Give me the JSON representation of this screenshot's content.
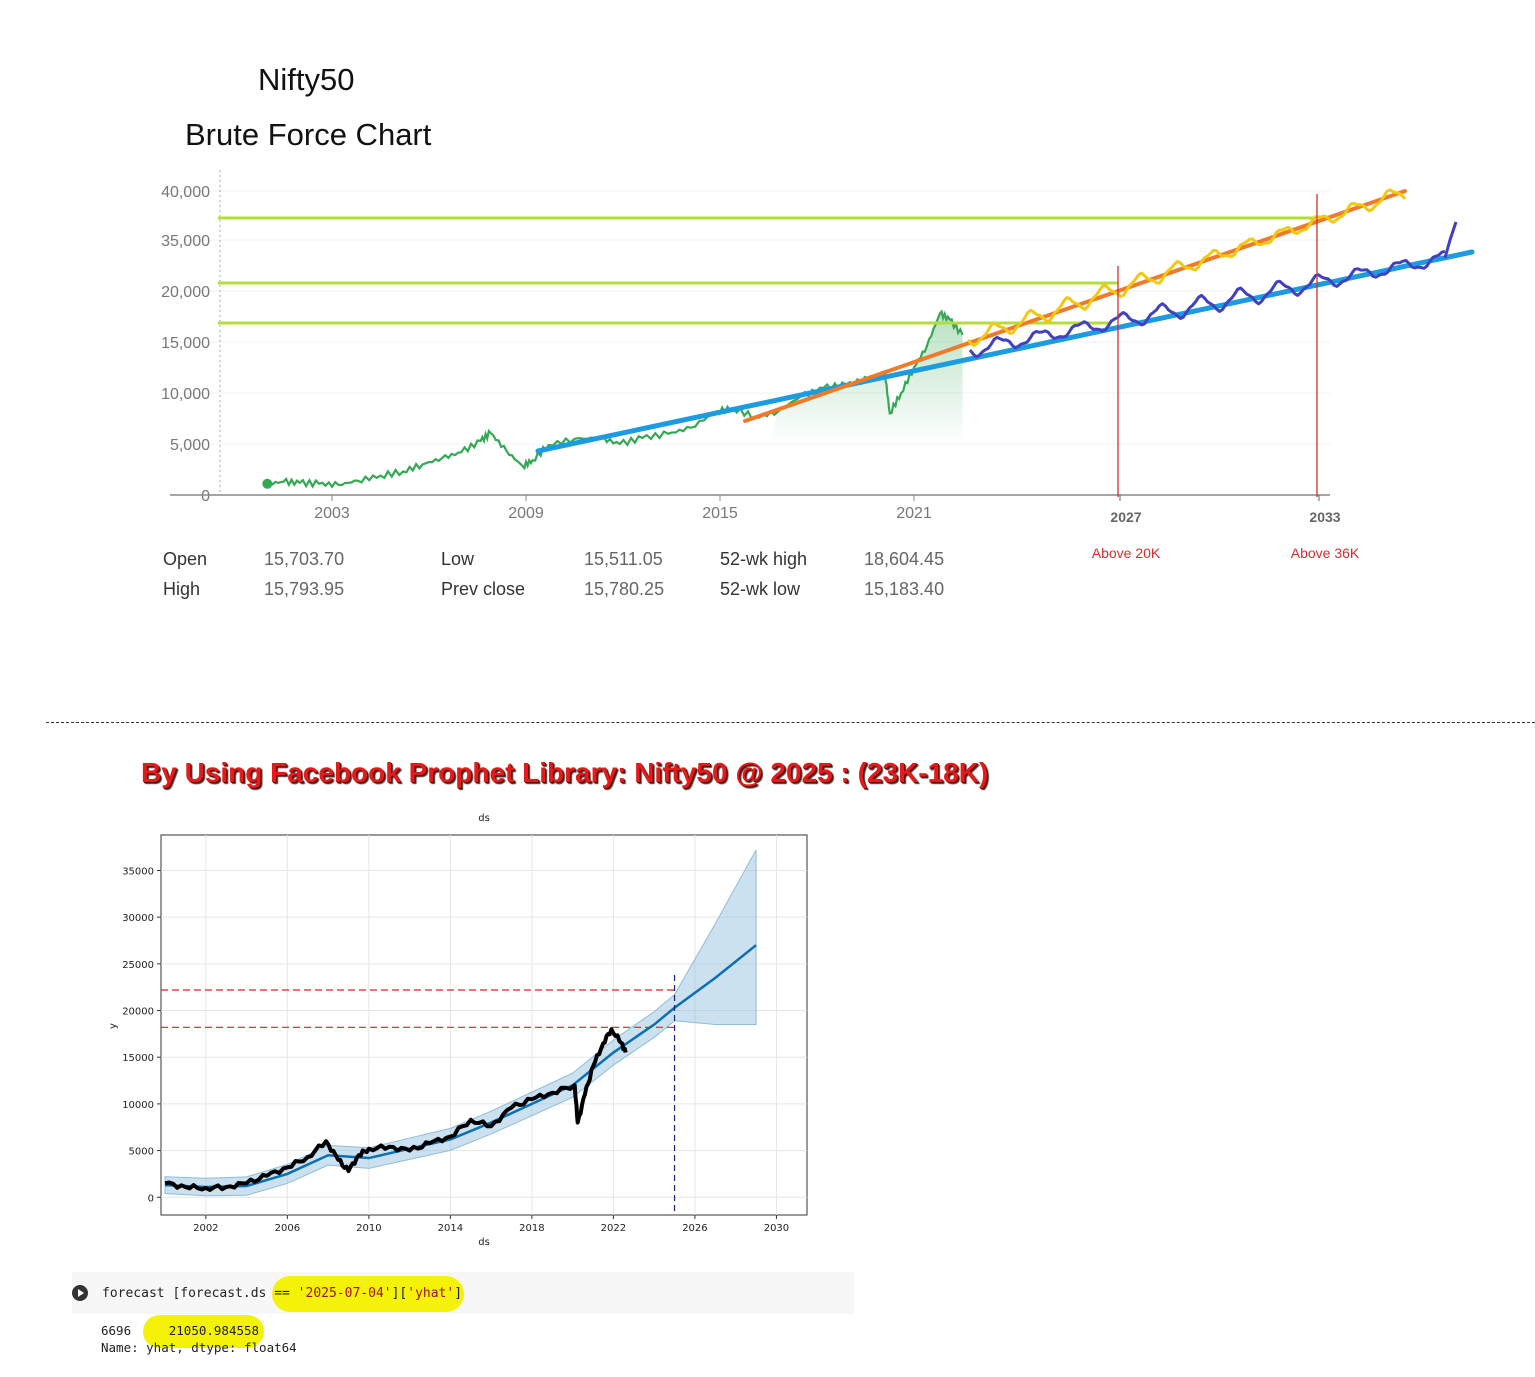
{
  "chart_data": [
    {
      "type": "line",
      "title": "Nifty50",
      "subtitle": "Brute Force Chart",
      "y_ticks": [
        "40,000",
        "35,000",
        "20,000",
        "15,000",
        "10,000",
        "5,000",
        "0"
      ],
      "x_ticks": [
        "2003",
        "2009",
        "2015",
        "2021"
      ],
      "annotation_ticks": [
        "2027",
        "2033"
      ],
      "annotations": [
        "Above 20K",
        "Above 36K"
      ],
      "colors": {
        "price": "#34a853",
        "trend_blue": "#1b9ce0",
        "trend_orange": "#f07a2a",
        "forecast_yellow": "#f2c811",
        "forecast_purple": "#4040c0",
        "levels": "#b5dd3a",
        "markers": "#d32f2f"
      },
      "series": [
        {
          "x": [
            2001.0,
            2001.5,
            2002.0,
            2002.6,
            2003.2,
            2003.8,
            2004.5,
            2005.2,
            2005.8,
            2006.4,
            2007.0,
            2007.6,
            2007.9,
            2008.4,
            2008.9,
            2009.2,
            2009.7,
            2010.5,
            2011.3,
            2011.9,
            2012.6,
            2013.4,
            2014.1,
            2014.9,
            2015.4,
            2016.1,
            2016.8,
            2017.5,
            2018.2,
            2018.9,
            2019.6,
            2020.1,
            2020.25,
            2020.6,
            2021.0,
            2021.4,
            2021.8,
            2022.1,
            2022.5
          ],
          "values": [
            1100,
            1300,
            1200,
            1100,
            1000,
            1400,
            1900,
            2300,
            3000,
            3600,
            4200,
            5300,
            6100,
            4300,
            2800,
            3400,
            4900,
            5500,
            5600,
            5000,
            5600,
            6000,
            6600,
            8200,
            8500,
            7600,
            8200,
            9700,
            10500,
            10800,
            11400,
            12000,
            8000,
            10000,
            12500,
            14600,
            17800,
            17200,
            15700
          ]
        }
      ],
      "stats": {
        "open_label": "Open",
        "open": "15,703.70",
        "high_label": "High",
        "high": "15,793.95",
        "low_label": "Low",
        "low": "15,511.05",
        "prev_close_label": "Prev close",
        "prev_close": "15,780.25",
        "wk52_high_label": "52-wk high",
        "wk52_high": "18,604.45",
        "wk52_low_label": "52-wk low",
        "wk52_low": "15,183.40"
      }
    },
    {
      "type": "line",
      "title": "ds",
      "xlabel": "ds",
      "ylabel": "y",
      "x_ticks": [
        "2002",
        "2006",
        "2010",
        "2014",
        "2018",
        "2022",
        "2026",
        "2030"
      ],
      "y_ticks": [
        "35000",
        "30000",
        "25000",
        "20000",
        "15000",
        "10000",
        "5000",
        "0"
      ],
      "xlim": [
        1999.8,
        2031.5
      ],
      "ylim": [
        -1900,
        38800
      ],
      "reference_levels": [
        22200,
        18200
      ],
      "forecast_split": 2025.0,
      "series": [
        {
          "x": [
            2000.0,
            2002.0,
            2004.0,
            2006.0,
            2008.0,
            2010.0,
            2012.0,
            2014.0,
            2016.0,
            2018.0,
            2020.0,
            2022.0,
            2024.0,
            2025.0,
            2027.0,
            2029.0
          ],
          "values": [
            1300,
            1100,
            1200,
            2500,
            4500,
            4200,
            5200,
            6200,
            8000,
            10000,
            12000,
            15500,
            18500,
            20300,
            23500,
            27000
          ]
        },
        {
          "x": [
            2000.0,
            2001.0,
            2002.0,
            2003.0,
            2004.0,
            2005.0,
            2006.0,
            2007.0,
            2007.9,
            2008.5,
            2009.0,
            2009.5,
            2010.0,
            2011.0,
            2012.0,
            2013.0,
            2014.0,
            2015.0,
            2016.0,
            2017.0,
            2018.0,
            2019.0,
            2020.1,
            2020.25,
            2020.6,
            2021.0,
            2021.5,
            2021.9,
            2022.4,
            2022.6
          ],
          "values": [
            1500,
            1100,
            1000,
            1100,
            1500,
            2300,
            3200,
            4300,
            6000,
            4000,
            2800,
            4500,
            5200,
            5400,
            5000,
            5800,
            6500,
            8300,
            7600,
            9600,
            10500,
            11200,
            12000,
            8000,
            11000,
            14000,
            16500,
            18000,
            16500,
            15500
          ]
        }
      ]
    }
  ],
  "headline": "By Using Facebook Prophet Library: Nifty50 @ 2025 : (23K-18K)",
  "code": {
    "prefix": "forecast [forecast.ds ",
    "op": "== ",
    "str1": "'2025-07-04'",
    "mid": "][",
    "str2": "'yhat'",
    "end": "]"
  },
  "output": {
    "index": "6696",
    "value": "21050.984558",
    "meta": "Name: yhat, dtype: float64"
  }
}
